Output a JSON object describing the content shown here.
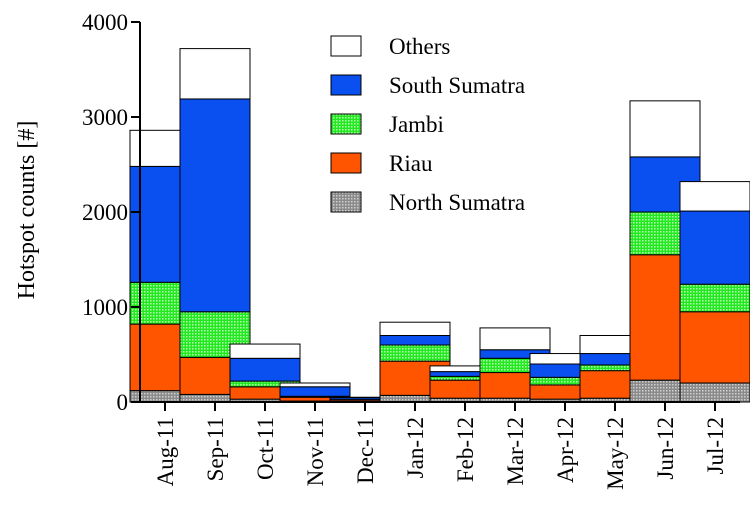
{
  "chart_data": {
    "type": "bar",
    "stacked": true,
    "ylabel": "Hotspot counts [#]",
    "ylim": [
      0,
      4000
    ],
    "yticks": [
      "0",
      "1000",
      "2000",
      "3000",
      "4000"
    ],
    "ytick_values": [
      0,
      1000,
      2000,
      3000,
      4000
    ],
    "categories": [
      "Aug-11",
      "Sep-11",
      "Oct-11",
      "Nov-11",
      "Dec-11",
      "Jan-12",
      "Feb-12",
      "Mar-12",
      "Apr-12",
      "May-12",
      "Jun-12",
      "Jul-12"
    ],
    "legend_position": "top-center",
    "series": [
      {
        "name": "North Sumatra",
        "color": "#9a9a9a",
        "pattern": "dotted-gray",
        "values": [
          120,
          80,
          30,
          10,
          5,
          70,
          40,
          40,
          30,
          40,
          230,
          200
        ]
      },
      {
        "name": "Riau",
        "color": "#ff5500",
        "pattern": "solid",
        "values": [
          700,
          390,
          130,
          40,
          15,
          360,
          190,
          270,
          150,
          290,
          1320,
          750
        ]
      },
      {
        "name": "Jambi",
        "color": "#22ee22",
        "pattern": "dotted-green",
        "values": [
          440,
          480,
          60,
          10,
          5,
          170,
          40,
          150,
          80,
          60,
          450,
          290
        ]
      },
      {
        "name": "South Sumatra",
        "color": "#0a50f0",
        "pattern": "solid",
        "values": [
          1220,
          2240,
          240,
          100,
          20,
          100,
          50,
          90,
          140,
          120,
          580,
          770
        ]
      },
      {
        "name": "Others",
        "color": "#ffffff",
        "pattern": "solid",
        "values": [
          380,
          530,
          150,
          40,
          5,
          140,
          60,
          230,
          110,
          190,
          590,
          310
        ]
      }
    ]
  }
}
